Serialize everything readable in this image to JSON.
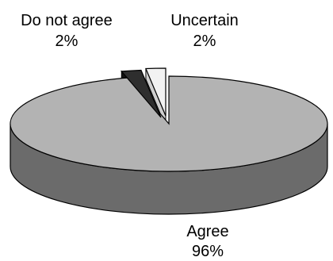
{
  "chart_data": {
    "type": "pie",
    "style": "3d-exploded",
    "slices": [
      {
        "label": "Agree",
        "value": 96,
        "value_label": "96%",
        "color": "#b3b3b3",
        "side_color": "#6b6b6b"
      },
      {
        "label": "Do not agree",
        "value": 2,
        "value_label": "2%",
        "color": "#2e2e2e",
        "side_color": "#121212"
      },
      {
        "label": "Uncertain",
        "value": 2,
        "value_label": "2%",
        "color": "#f2f2f2",
        "side_color": "#cfcfcf"
      }
    ],
    "legend": "none"
  }
}
